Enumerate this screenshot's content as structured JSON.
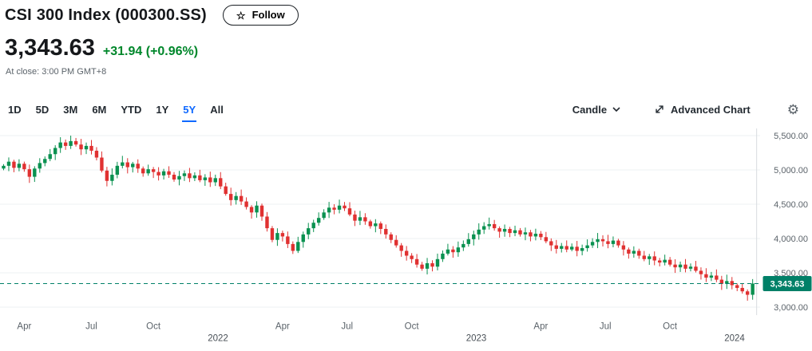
{
  "header": {
    "title": "CSI 300 Index (000300.SS)",
    "follow_label": "Follow",
    "price": "3,343.63",
    "change": "+31.94",
    "change_pct": "(+0.96%)",
    "at_close": "At close: 3:00 PM GMT+8"
  },
  "toolbar": {
    "ranges": [
      {
        "label": "1D"
      },
      {
        "label": "5D"
      },
      {
        "label": "3M"
      },
      {
        "label": "6M"
      },
      {
        "label": "YTD"
      },
      {
        "label": "1Y"
      },
      {
        "label": "5Y"
      },
      {
        "label": "All"
      }
    ],
    "active_range": "5Y",
    "chart_type_label": "Candle",
    "advanced_chart_label": "Advanced Chart"
  },
  "colors": {
    "positive": "#00872b",
    "accent_blue": "#0f69ff",
    "candle_up": "#0a9150",
    "candle_down": "#e03131",
    "price_line": "#008068",
    "axis_text": "#5b636a",
    "grid": "#eef0f3",
    "crosshair": "#d8dcе0"
  },
  "chart_data": {
    "type": "candlestick",
    "title": "CSI 300 Index (000300.SS) 5Y weekly candlestick chart",
    "interval": "weekly",
    "ylim": [
      2980,
      5650
    ],
    "grid": true,
    "y_tick_values": [
      5500,
      5000,
      4500,
      4000,
      3500,
      3000
    ],
    "y_tick_labels": [
      "5,500.00",
      "5,000.00",
      "4,500.00",
      "4,000.00",
      "3,500.00",
      "3,000.00"
    ],
    "x_labels": [
      {
        "label": "Apr",
        "week": 4,
        "year": false
      },
      {
        "label": "Jul",
        "week": 17,
        "year": false
      },
      {
        "label": "Oct",
        "week": 29,
        "year": false
      },
      {
        "label": "2022",
        "week": 41.5,
        "year": true
      },
      {
        "label": "Apr",
        "week": 54,
        "year": false
      },
      {
        "label": "Jul",
        "week": 66.5,
        "year": false
      },
      {
        "label": "Oct",
        "week": 79,
        "year": false
      },
      {
        "label": "2023",
        "week": 91.5,
        "year": true
      },
      {
        "label": "Apr",
        "week": 104,
        "year": false
      },
      {
        "label": "Jul",
        "week": 116.5,
        "year": false
      },
      {
        "label": "Oct",
        "week": 129,
        "year": false
      },
      {
        "label": "2024",
        "week": 141.5,
        "year": true
      }
    ],
    "last_price": 3343.63,
    "last_price_label": "3,343.63",
    "first_open": 5020,
    "closes": [
      5060,
      5120,
      5030,
      5090,
      5010,
      4900,
      5020,
      5100,
      5160,
      5230,
      5320,
      5400,
      5350,
      5420,
      5370,
      5300,
      5350,
      5280,
      5180,
      4990,
      4840,
      4930,
      5060,
      5110,
      5040,
      5090,
      5020,
      4950,
      5010,
      4970,
      4920,
      4980,
      4930,
      4860,
      4910,
      4950,
      4880,
      4920,
      4850,
      4890,
      4820,
      4880,
      4760,
      4650,
      4560,
      4620,
      4540,
      4460,
      4380,
      4480,
      4320,
      4150,
      3980,
      4080,
      4030,
      3920,
      3820,
      3950,
      4060,
      4150,
      4230,
      4300,
      4380,
      4450,
      4420,
      4480,
      4440,
      4350,
      4260,
      4310,
      4250,
      4180,
      4220,
      4140,
      4060,
      3980,
      3900,
      3820,
      3750,
      3700,
      3620,
      3560,
      3640,
      3590,
      3700,
      3780,
      3840,
      3800,
      3870,
      3920,
      3990,
      4060,
      4130,
      4180,
      4210,
      4150,
      4100,
      4140,
      4080,
      4120,
      4060,
      4090,
      4030,
      4070,
      4020,
      3960,
      3900,
      3850,
      3890,
      3840,
      3880,
      3820,
      3860,
      3900,
      3950,
      3990,
      3960,
      3920,
      3970,
      3900,
      3840,
      3780,
      3820,
      3750,
      3700,
      3740,
      3680,
      3650,
      3690,
      3620,
      3580,
      3620,
      3560,
      3590,
      3530,
      3480,
      3430,
      3460,
      3400,
      3340,
      3380,
      3320,
      3280,
      3230,
      3180,
      3343.63
    ]
  }
}
